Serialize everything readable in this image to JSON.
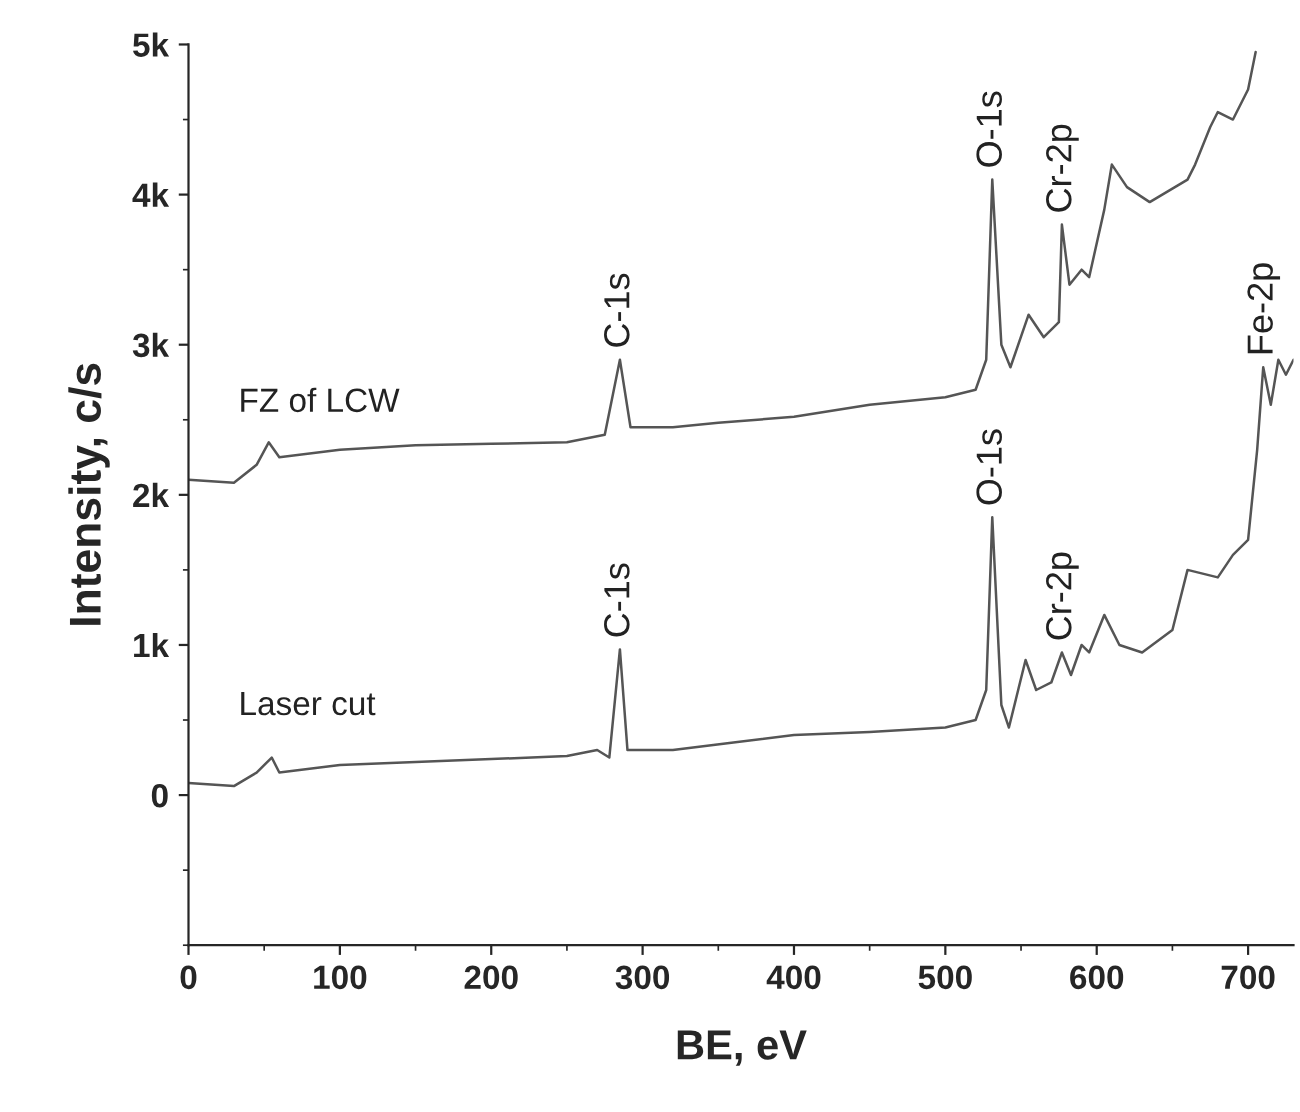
{
  "chart_data": {
    "type": "line",
    "xlabel": "BE, eV",
    "ylabel": "Intensity, c/s",
    "xlim": [
      0,
      730
    ],
    "ylim": [
      -1000,
      5000
    ],
    "xticks": [
      0,
      100,
      200,
      300,
      400,
      500,
      600,
      700
    ],
    "yticks": [
      {
        "value": 0,
        "label": "0"
      },
      {
        "value": 1000,
        "label": "1k"
      },
      {
        "value": 2000,
        "label": "2k"
      },
      {
        "value": 3000,
        "label": "3k"
      },
      {
        "value": 4000,
        "label": "4k"
      },
      {
        "value": 5000,
        "label": "5k"
      }
    ],
    "grid": false,
    "legend": false,
    "marker": "none",
    "line_style": "solid",
    "series": [
      {
        "name": "FZ of LCW",
        "color": "#555555",
        "x": [
          0,
          30,
          45,
          53,
          60,
          100,
          150,
          200,
          250,
          275,
          285,
          292,
          320,
          350,
          400,
          450,
          500,
          520,
          527,
          531,
          537,
          543,
          555,
          565,
          575,
          577,
          582,
          590,
          595,
          605,
          610,
          620,
          635,
          660,
          665,
          675,
          680,
          690,
          700,
          705
        ],
        "values": [
          2100,
          2080,
          2200,
          2350,
          2250,
          2300,
          2330,
          2340,
          2350,
          2400,
          2900,
          2450,
          2450,
          2480,
          2520,
          2600,
          2650,
          2700,
          2900,
          4100,
          3000,
          2850,
          3200,
          3050,
          3150,
          3800,
          3400,
          3500,
          3450,
          3900,
          4200,
          4050,
          3950,
          4100,
          4200,
          4450,
          4550,
          4500,
          4700,
          4950
        ]
      },
      {
        "name": "Laser cut",
        "color": "#555555",
        "x": [
          0,
          30,
          45,
          55,
          60,
          100,
          150,
          200,
          250,
          270,
          278,
          285,
          290,
          320,
          360,
          400,
          450,
          500,
          520,
          527,
          531,
          537,
          542,
          553,
          560,
          570,
          577,
          583,
          590,
          595,
          605,
          615,
          630,
          650,
          660,
          680,
          690,
          700,
          706,
          710,
          715,
          720,
          725,
          730
        ],
        "values": [
          80,
          60,
          150,
          250,
          150,
          200,
          220,
          240,
          260,
          300,
          250,
          970,
          300,
          300,
          350,
          400,
          420,
          450,
          500,
          700,
          1850,
          600,
          450,
          900,
          700,
          750,
          950,
          800,
          1000,
          950,
          1200,
          1000,
          950,
          1100,
          1500,
          1450,
          1600,
          1700,
          2300,
          2850,
          2600,
          2900,
          2800,
          2900
        ]
      }
    ],
    "annotations": [
      {
        "text": "C-1s",
        "x": 285,
        "y": 2900
      },
      {
        "text": "O-1s",
        "x": 531,
        "y": 4100
      },
      {
        "text": "Cr-2p",
        "x": 577,
        "y": 3800
      },
      {
        "text": "C-1s",
        "x": 285,
        "y": 970
      },
      {
        "text": "O-1s",
        "x": 531,
        "y": 1850
      },
      {
        "text": "Cr-2p",
        "x": 577,
        "y": 950
      },
      {
        "text": "Fe-2p",
        "x": 710,
        "y": 2850
      }
    ]
  }
}
